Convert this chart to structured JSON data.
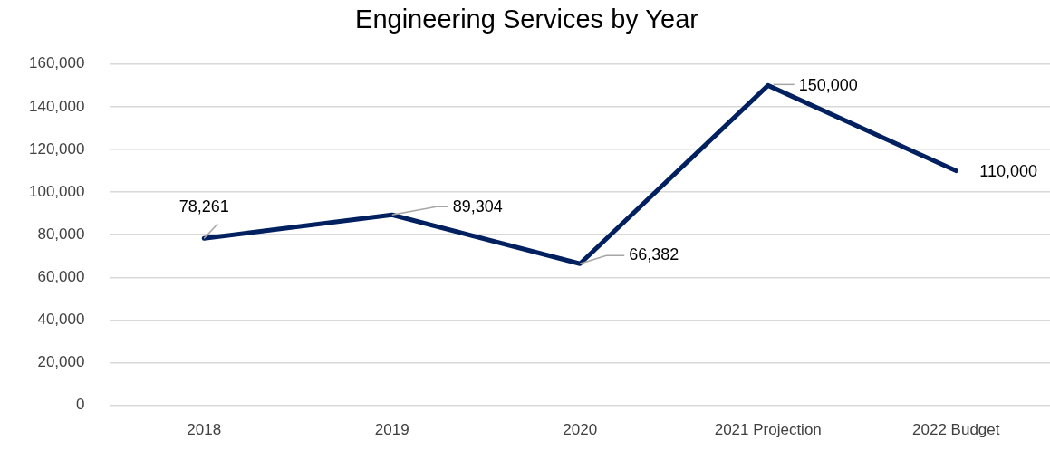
{
  "chart_data": {
    "type": "line",
    "title": "Engineering Services by Year",
    "categories": [
      "2018",
      "2019",
      "2020",
      "2021 Projection",
      "2022 Budget"
    ],
    "series": [
      {
        "color": "#002060",
        "values": [
          78261,
          89304,
          66382,
          150000,
          110000
        ],
        "value_labels": [
          "78,261",
          "89,304",
          "66,382",
          "150,000",
          "110,000"
        ]
      }
    ],
    "ylim": [
      0,
      160000
    ],
    "yticks": [
      {
        "value": 0,
        "label": "0"
      },
      {
        "value": 20000,
        "label": "20,000"
      },
      {
        "value": 40000,
        "label": "40,000"
      },
      {
        "value": 60000,
        "label": "60,000"
      },
      {
        "value": 80000,
        "label": "80,000"
      },
      {
        "value": 100000,
        "label": "100,000"
      },
      {
        "value": 120000,
        "label": "120,000"
      },
      {
        "value": 140000,
        "label": "140,000"
      },
      {
        "value": 160000,
        "label": "160,000"
      }
    ],
    "grid": "y",
    "legend": false,
    "marker": "none",
    "line_style": "solid"
  }
}
